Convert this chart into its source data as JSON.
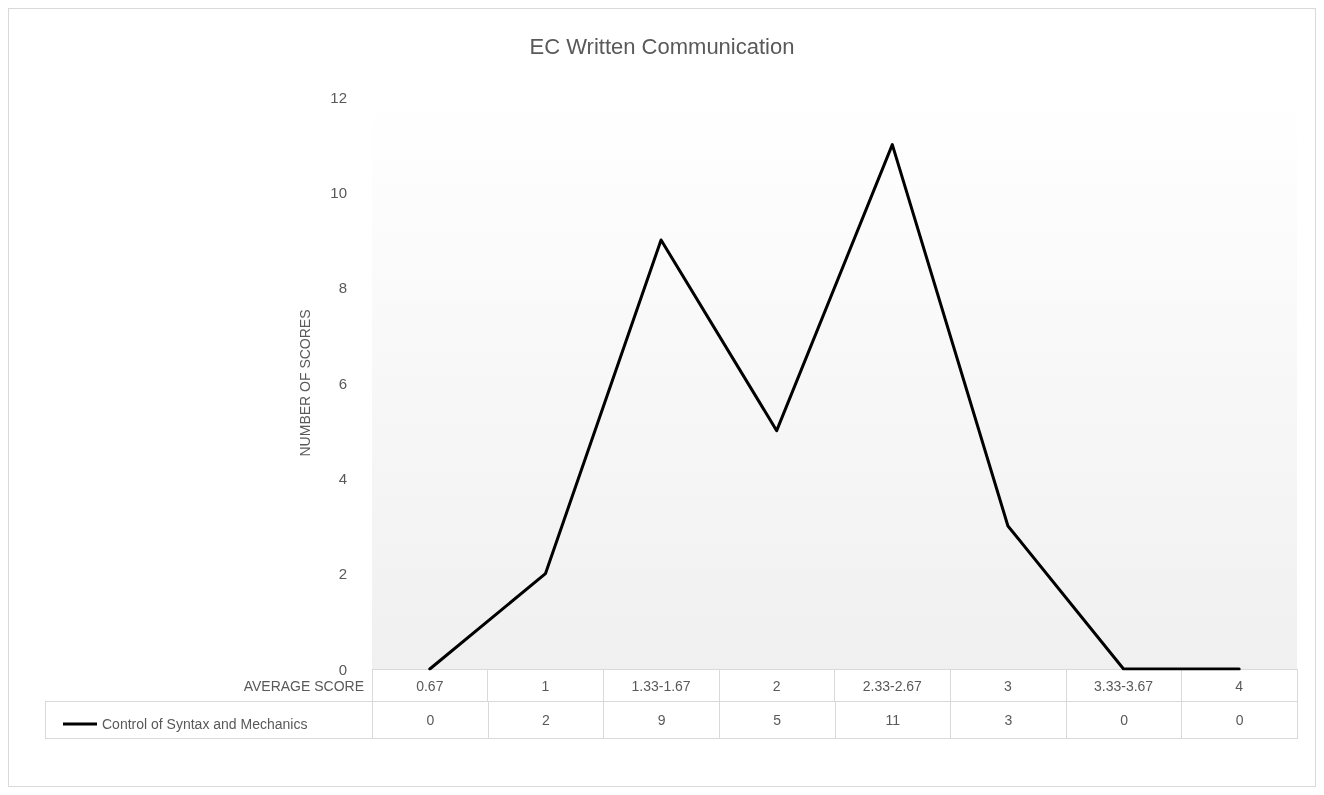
{
  "chart_data": {
    "type": "line",
    "title": "EC Written Communication",
    "xlabel": "AVERAGE SCORE",
    "ylabel": "NUMBER OF SCORES",
    "categories": [
      "0.67",
      "1",
      "1.33-1.67",
      "2",
      "2.33-2.67",
      "3",
      "3.33-3.67",
      "4"
    ],
    "series": [
      {
        "name": "Control of Syntax and Mechanics",
        "color": "#000000",
        "values": [
          0,
          2,
          9,
          5,
          11,
          3,
          0,
          0
        ]
      }
    ],
    "ylim": [
      0,
      12
    ],
    "yticks": [
      0,
      2,
      4,
      6,
      8,
      10,
      12
    ],
    "grid": false,
    "legend": "bottom left",
    "data_labels": true,
    "marker": "none",
    "line_style": "solid"
  }
}
